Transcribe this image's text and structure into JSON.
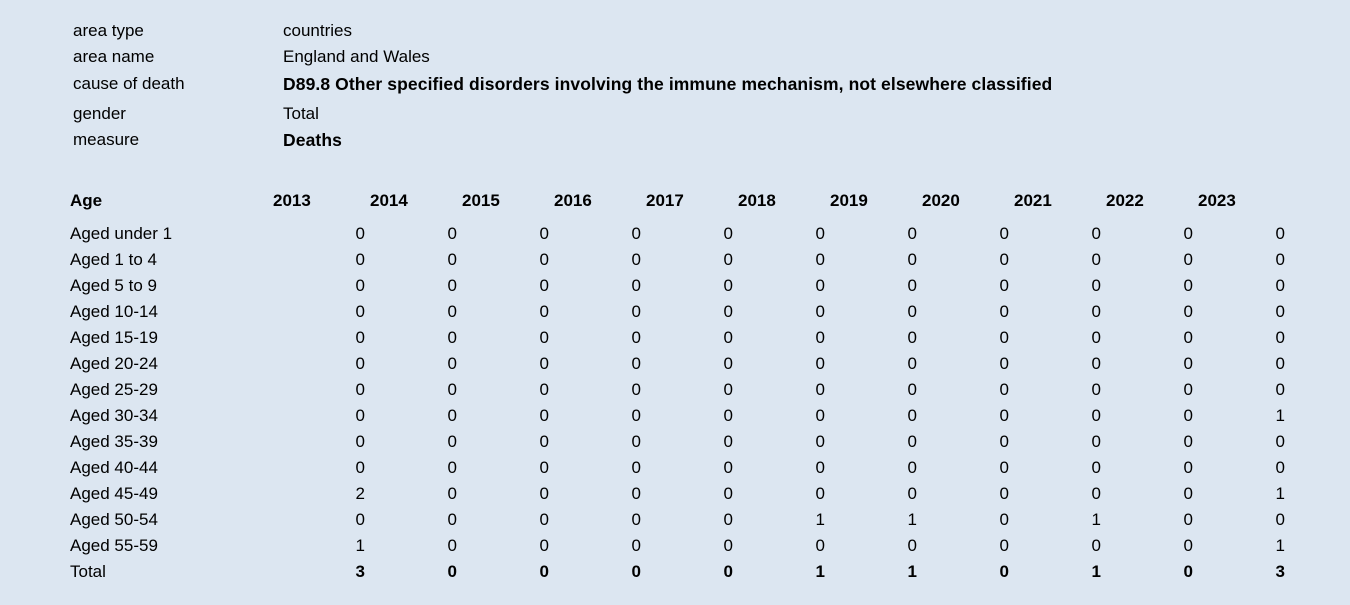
{
  "meta": [
    {
      "label": "area type",
      "value": "countries",
      "bold": false
    },
    {
      "label": "area name",
      "value": "England and Wales",
      "bold": false
    },
    {
      "label": "cause of death",
      "value": "D89.8 Other specified disorders involving the immune mechanism, not elsewhere classified",
      "bold": true
    },
    {
      "label": "gender",
      "value": "Total",
      "bold": false
    },
    {
      "label": "measure",
      "value": "Deaths",
      "bold": true
    }
  ],
  "table": {
    "age_header": "Age",
    "years": [
      "2013",
      "2014",
      "2015",
      "2016",
      "2017",
      "2018",
      "2019",
      "2020",
      "2021",
      "2022",
      "2023"
    ],
    "rows": [
      {
        "age": "Aged under 1",
        "values": [
          "0",
          "0",
          "0",
          "0",
          "0",
          "0",
          "0",
          "0",
          "0",
          "0",
          "0"
        ]
      },
      {
        "age": "Aged 1 to 4",
        "values": [
          "0",
          "0",
          "0",
          "0",
          "0",
          "0",
          "0",
          "0",
          "0",
          "0",
          "0"
        ]
      },
      {
        "age": "Aged 5 to 9",
        "values": [
          "0",
          "0",
          "0",
          "0",
          "0",
          "0",
          "0",
          "0",
          "0",
          "0",
          "0"
        ]
      },
      {
        "age": "Aged 10-14",
        "values": [
          "0",
          "0",
          "0",
          "0",
          "0",
          "0",
          "0",
          "0",
          "0",
          "0",
          "0"
        ]
      },
      {
        "age": "Aged 15-19",
        "values": [
          "0",
          "0",
          "0",
          "0",
          "0",
          "0",
          "0",
          "0",
          "0",
          "0",
          "0"
        ]
      },
      {
        "age": "Aged 20-24",
        "values": [
          "0",
          "0",
          "0",
          "0",
          "0",
          "0",
          "0",
          "0",
          "0",
          "0",
          "0"
        ]
      },
      {
        "age": "Aged 25-29",
        "values": [
          "0",
          "0",
          "0",
          "0",
          "0",
          "0",
          "0",
          "0",
          "0",
          "0",
          "0"
        ]
      },
      {
        "age": "Aged 30-34",
        "values": [
          "0",
          "0",
          "0",
          "0",
          "0",
          "0",
          "0",
          "0",
          "0",
          "0",
          "1"
        ]
      },
      {
        "age": "Aged 35-39",
        "values": [
          "0",
          "0",
          "0",
          "0",
          "0",
          "0",
          "0",
          "0",
          "0",
          "0",
          "0"
        ]
      },
      {
        "age": "Aged 40-44",
        "values": [
          "0",
          "0",
          "0",
          "0",
          "0",
          "0",
          "0",
          "0",
          "0",
          "0",
          "0"
        ]
      },
      {
        "age": "Aged 45-49",
        "values": [
          "2",
          "0",
          "0",
          "0",
          "0",
          "0",
          "0",
          "0",
          "0",
          "0",
          "1"
        ]
      },
      {
        "age": "Aged 50-54",
        "values": [
          "0",
          "0",
          "0",
          "0",
          "0",
          "1",
          "1",
          "0",
          "1",
          "0",
          "0"
        ]
      },
      {
        "age": "Aged 55-59",
        "values": [
          "1",
          "0",
          "0",
          "0",
          "0",
          "0",
          "0",
          "0",
          "0",
          "0",
          "1"
        ]
      }
    ],
    "total": {
      "age": "Total",
      "values": [
        "3",
        "0",
        "0",
        "0",
        "0",
        "1",
        "1",
        "0",
        "1",
        "0",
        "3"
      ]
    }
  }
}
